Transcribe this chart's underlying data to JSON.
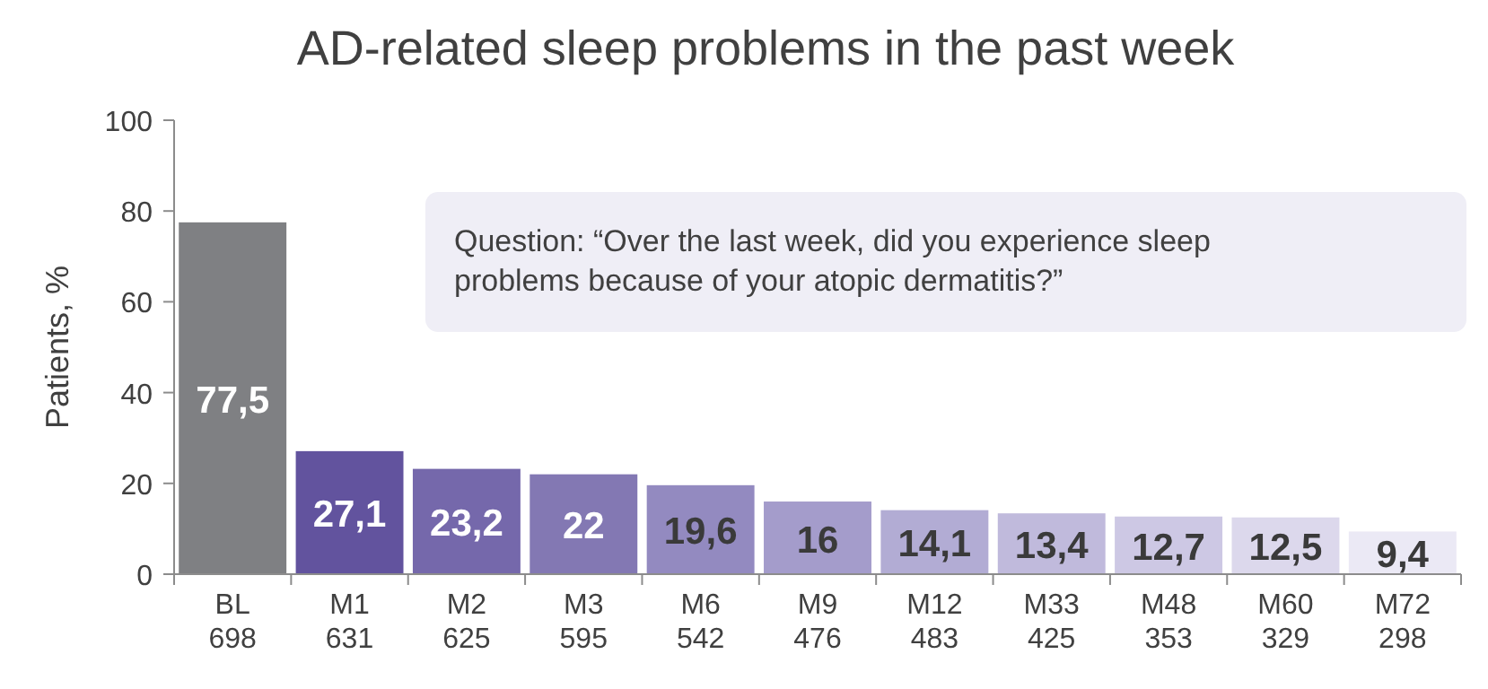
{
  "chart_data": {
    "type": "bar",
    "title": "AD-related sleep problems in the past week",
    "ylabel": "Patients, %",
    "categories": [
      "BL\n698",
      "M1\n631",
      "M2\n625",
      "M3\n595",
      "M6\n542",
      "M9\n476",
      "M12\n483",
      "M33\n425",
      "M48\n353",
      "M60\n329",
      "M72\n298"
    ],
    "values": [
      77.5,
      27.1,
      23.2,
      22,
      19.6,
      16,
      14.1,
      13.4,
      12.7,
      12.5,
      9.4
    ],
    "colors": [
      "#7f8083",
      "#62539e",
      "#7568ab",
      "#8378b3",
      "#938ac0",
      "#a49ccb",
      "#b2acd4",
      "#c0badc",
      "#cdc8e4",
      "#dcd8ec",
      "#ebe9f5"
    ],
    "value_labels": [
      "77,5",
      "27,1",
      "23,2",
      "22",
      "19,6",
      "16",
      "14,1",
      "13,4",
      "12,7",
      "12,5",
      "9,4"
    ],
    "ylim": [
      0,
      100
    ],
    "yticks": [
      0,
      20,
      40,
      60,
      80,
      100
    ],
    "grid": false,
    "annotations": [
      "Question: “Over the last week, did you experience sleep\nproblems because of your atopic dermatitis?”"
    ]
  }
}
